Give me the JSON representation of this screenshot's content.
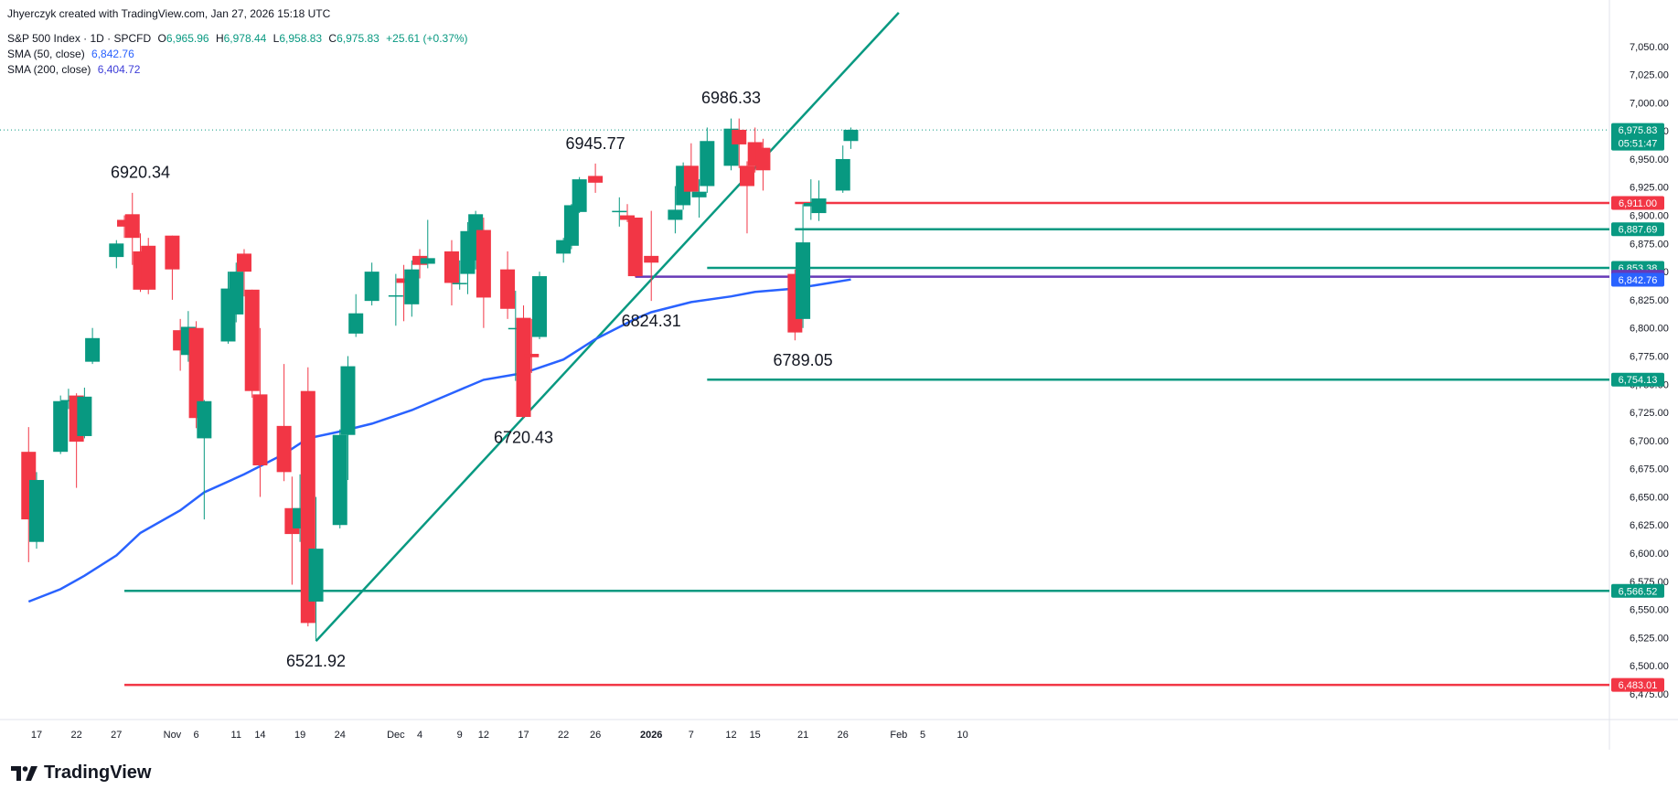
{
  "header": {
    "created": "Jhyerczyk created with TradingView.com, Jan 27, 2026 15:18 UTC",
    "symbol": "S&P 500 Index · 1D · SPCFD",
    "ohlc": {
      "o_label": "O",
      "o": "6,965.96",
      "h_label": "H",
      "h": "6,978.44",
      "l_label": "L",
      "l": "6,958.83",
      "c_label": "C",
      "c": "6,975.83",
      "change": "+25.61 (+0.37%)"
    },
    "sma50": {
      "label": "SMA (50, close)",
      "value": "6,842.76"
    },
    "sma200": {
      "label": "SMA (200, close)",
      "value": "6,404.72"
    }
  },
  "logo": {
    "text": "TradingView",
    "icon": "tradingview-logo-icon"
  },
  "colors": {
    "up": "#089981",
    "down": "#f23645",
    "sma": "#2962ff",
    "support": "#089981",
    "resistance": "#f23645",
    "purple": "#673ab7"
  },
  "chart_data": {
    "type": "candlestick",
    "ylim": [
      6462,
      7075
    ],
    "y_ticks": [
      6475,
      6500,
      6525,
      6550,
      6575,
      6600,
      6625,
      6650,
      6675,
      6700,
      6725,
      6750,
      6775,
      6800,
      6825,
      6850,
      6875,
      6900,
      6925,
      6950,
      6975,
      7000,
      7025,
      7050
    ],
    "x_ticks": [
      {
        "label": "17",
        "date": "2025-10-17"
      },
      {
        "label": "22",
        "date": "2025-10-22"
      },
      {
        "label": "27",
        "date": "2025-10-27"
      },
      {
        "label": "Nov",
        "date": "2025-11-03"
      },
      {
        "label": "6",
        "date": "2025-11-06"
      },
      {
        "label": "11",
        "date": "2025-11-11"
      },
      {
        "label": "14",
        "date": "2025-11-14"
      },
      {
        "label": "19",
        "date": "2025-11-19"
      },
      {
        "label": "24",
        "date": "2025-11-24"
      },
      {
        "label": "Dec",
        "date": "2025-12-01"
      },
      {
        "label": "4",
        "date": "2025-12-04"
      },
      {
        "label": "9",
        "date": "2025-12-09"
      },
      {
        "label": "12",
        "date": "2025-12-12"
      },
      {
        "label": "17",
        "date": "2025-12-17"
      },
      {
        "label": "22",
        "date": "2025-12-22"
      },
      {
        "label": "26",
        "date": "2025-12-26"
      },
      {
        "label": "2026",
        "date": "2026-01-02"
      },
      {
        "label": "7",
        "date": "2026-01-07"
      },
      {
        "label": "12",
        "date": "2026-01-12"
      },
      {
        "label": "15",
        "date": "2026-01-15"
      },
      {
        "label": "21",
        "date": "2026-01-21"
      },
      {
        "label": "26",
        "date": "2026-01-26"
      },
      {
        "label": "Feb",
        "date": "2026-02-02"
      },
      {
        "label": "5",
        "date": "2026-02-05"
      },
      {
        "label": "10",
        "date": "2026-02-10"
      }
    ],
    "candles": [
      {
        "d": "2025-10-16",
        "o": 6690,
        "h": 6712,
        "l": 6592,
        "c": 6630
      },
      {
        "d": "2025-10-17",
        "o": 6610,
        "h": 6672,
        "l": 6604,
        "c": 6665
      },
      {
        "d": "2025-10-20",
        "o": 6690,
        "h": 6740,
        "l": 6688,
        "c": 6735
      },
      {
        "d": "2025-10-21",
        "o": 6735,
        "h": 6746,
        "l": 6728,
        "c": 6736
      },
      {
        "d": "2025-10-22",
        "o": 6740,
        "h": 6742,
        "l": 6658,
        "c": 6699
      },
      {
        "d": "2025-10-23",
        "o": 6704,
        "h": 6747,
        "l": 6702,
        "c": 6739
      },
      {
        "d": "2025-10-24",
        "o": 6770,
        "h": 6800,
        "l": 6768,
        "c": 6791
      },
      {
        "d": "2025-10-27",
        "o": 6863,
        "h": 6878,
        "l": 6853,
        "c": 6875
      },
      {
        "d": "2025-10-28",
        "o": 6896,
        "h": 6900,
        "l": 6880,
        "c": 6890
      },
      {
        "d": "2025-10-29",
        "o": 6901,
        "h": 6920,
        "l": 6856,
        "c": 6880
      },
      {
        "d": "2025-10-30",
        "o": 6868,
        "h": 6884,
        "l": 6832,
        "c": 6834
      },
      {
        "d": "2025-10-31",
        "o": 6873,
        "h": 6880,
        "l": 6830,
        "c": 6834
      },
      {
        "d": "2025-11-03",
        "o": 6882,
        "h": 6882,
        "l": 6825,
        "c": 6852
      },
      {
        "d": "2025-11-04",
        "o": 6798,
        "h": 6808,
        "l": 6762,
        "c": 6780
      },
      {
        "d": "2025-11-05",
        "o": 6776,
        "h": 6815,
        "l": 6770,
        "c": 6801
      },
      {
        "d": "2025-11-06",
        "o": 6800,
        "h": 6806,
        "l": 6711,
        "c": 6720
      },
      {
        "d": "2025-11-07",
        "o": 6702,
        "h": 6736,
        "l": 6630,
        "c": 6735
      },
      {
        "d": "2025-11-10",
        "o": 6788,
        "h": 6850,
        "l": 6786,
        "c": 6835
      },
      {
        "d": "2025-11-11",
        "o": 6812,
        "h": 6858,
        "l": 6805,
        "c": 6850
      },
      {
        "d": "2025-11-12",
        "o": 6866,
        "h": 6870,
        "l": 6828,
        "c": 6850
      },
      {
        "d": "2025-11-13",
        "o": 6834,
        "h": 6834,
        "l": 6738,
        "c": 6744
      },
      {
        "d": "2025-11-14",
        "o": 6741,
        "h": 6800,
        "l": 6650,
        "c": 6678
      },
      {
        "d": "2025-11-17",
        "o": 6713,
        "h": 6768,
        "l": 6664,
        "c": 6672
      },
      {
        "d": "2025-11-18",
        "o": 6640,
        "h": 6668,
        "l": 6572,
        "c": 6617
      },
      {
        "d": "2025-11-19",
        "o": 6622,
        "h": 6670,
        "l": 6610,
        "c": 6640
      },
      {
        "d": "2025-11-20",
        "o": 6744,
        "h": 6765,
        "l": 6535,
        "c": 6538
      },
      {
        "d": "2025-11-21",
        "o": 6557,
        "h": 6650,
        "l": 6522,
        "c": 6604
      },
      {
        "d": "2025-11-24",
        "o": 6625,
        "h": 6710,
        "l": 6622,
        "c": 6705
      },
      {
        "d": "2025-11-25",
        "o": 6705,
        "h": 6775,
        "l": 6665,
        "c": 6766
      },
      {
        "d": "2025-11-26",
        "o": 6795,
        "h": 6830,
        "l": 6792,
        "c": 6813
      },
      {
        "d": "2025-11-28",
        "o": 6824,
        "h": 6858,
        "l": 6820,
        "c": 6850
      },
      {
        "d": "2025-12-01",
        "o": 6829,
        "h": 6848,
        "l": 6802,
        "c": 6829
      },
      {
        "d": "2025-12-02",
        "o": 6844,
        "h": 6856,
        "l": 6806,
        "c": 6840
      },
      {
        "d": "2025-12-03",
        "o": 6821,
        "h": 6860,
        "l": 6810,
        "c": 6852
      },
      {
        "d": "2025-12-04",
        "o": 6864,
        "h": 6870,
        "l": 6844,
        "c": 6856
      },
      {
        "d": "2025-12-05",
        "o": 6857,
        "h": 6896,
        "l": 6853,
        "c": 6862
      },
      {
        "d": "2025-12-08",
        "o": 6868,
        "h": 6878,
        "l": 6820,
        "c": 6840
      },
      {
        "d": "2025-12-09",
        "o": 6840,
        "h": 6860,
        "l": 6834,
        "c": 6840
      },
      {
        "d": "2025-12-10",
        "o": 6848,
        "h": 6894,
        "l": 6830,
        "c": 6886
      },
      {
        "d": "2025-12-11",
        "o": 6860,
        "h": 6904,
        "l": 6852,
        "c": 6901
      },
      {
        "d": "2025-12-12",
        "o": 6887,
        "h": 6898,
        "l": 6800,
        "c": 6827
      },
      {
        "d": "2025-12-15",
        "o": 6852,
        "h": 6868,
        "l": 6808,
        "c": 6817
      },
      {
        "d": "2025-12-16",
        "o": 6800,
        "h": 6833,
        "l": 6753,
        "c": 6800
      },
      {
        "d": "2025-12-17",
        "o": 6809,
        "h": 6820,
        "l": 6720,
        "c": 6721
      },
      {
        "d": "2025-12-18",
        "o": 6777,
        "h": 6808,
        "l": 6760,
        "c": 6774
      },
      {
        "d": "2025-12-19",
        "o": 6792,
        "h": 6850,
        "l": 6790,
        "c": 6846
      },
      {
        "d": "2025-12-22",
        "o": 6866,
        "h": 6880,
        "l": 6858,
        "c": 6878
      },
      {
        "d": "2025-12-23",
        "o": 6873,
        "h": 6910,
        "l": 6870,
        "c": 6909
      },
      {
        "d": "2025-12-24",
        "o": 6903,
        "h": 6934,
        "l": 6902,
        "c": 6932
      },
      {
        "d": "2025-12-26",
        "o": 6935,
        "h": 6946,
        "l": 6920,
        "c": 6929
      },
      {
        "d": "2025-12-29",
        "o": 6903,
        "h": 6916,
        "l": 6890,
        "c": 6904
      },
      {
        "d": "2025-12-30",
        "o": 6900,
        "h": 6910,
        "l": 6894,
        "c": 6896
      },
      {
        "d": "2025-12-31",
        "o": 6898,
        "h": 6898,
        "l": 6845,
        "c": 6846
      },
      {
        "d": "2026-01-02",
        "o": 6864,
        "h": 6904,
        "l": 6824,
        "c": 6858
      },
      {
        "d": "2026-01-05",
        "o": 6896,
        "h": 6926,
        "l": 6884,
        "c": 6905
      },
      {
        "d": "2026-01-06",
        "o": 6909,
        "h": 6947,
        "l": 6905,
        "c": 6944
      },
      {
        "d": "2026-01-07",
        "o": 6944,
        "h": 6964,
        "l": 6922,
        "c": 6921
      },
      {
        "d": "2026-01-08",
        "o": 6916,
        "h": 6932,
        "l": 6898,
        "c": 6921
      },
      {
        "d": "2026-01-09",
        "o": 6926,
        "h": 6978,
        "l": 6920,
        "c": 6966
      },
      {
        "d": "2026-01-12",
        "o": 6944,
        "h": 6986,
        "l": 6940,
        "c": 6977
      },
      {
        "d": "2026-01-13",
        "o": 6976,
        "h": 6986,
        "l": 6942,
        "c": 6963
      },
      {
        "d": "2026-01-14",
        "o": 6944,
        "h": 6948,
        "l": 6884,
        "c": 6926
      },
      {
        "d": "2026-01-15",
        "o": 6965,
        "h": 6978,
        "l": 6938,
        "c": 6944
      },
      {
        "d": "2026-01-16",
        "o": 6960,
        "h": 6968,
        "l": 6922,
        "c": 6940
      },
      {
        "d": "2026-01-20",
        "o": 6848,
        "h": 6852,
        "l": 6789,
        "c": 6796
      },
      {
        "d": "2026-01-21",
        "o": 6808,
        "h": 6910,
        "l": 6800,
        "c": 6876
      },
      {
        "d": "2026-01-22",
        "o": 6908,
        "h": 6932,
        "l": 6896,
        "c": 6911
      },
      {
        "d": "2026-01-23",
        "o": 6902,
        "h": 6931,
        "l": 6895,
        "c": 6915
      },
      {
        "d": "2026-01-26",
        "o": 6922,
        "h": 6962,
        "l": 6920,
        "c": 6950
      },
      {
        "d": "2026-01-27",
        "o": 6966,
        "h": 6978,
        "l": 6959,
        "c": 6976
      }
    ],
    "sma50": [
      [
        "2025-10-16",
        6557
      ],
      [
        "2025-10-20",
        6568
      ],
      [
        "2025-10-23",
        6580
      ],
      [
        "2025-10-27",
        6598
      ],
      [
        "2025-10-30",
        6618
      ],
      [
        "2025-11-04",
        6638
      ],
      [
        "2025-11-07",
        6654
      ],
      [
        "2025-11-12",
        6670
      ],
      [
        "2025-11-17",
        6688
      ],
      [
        "2025-11-20",
        6702
      ],
      [
        "2025-11-24",
        6708
      ],
      [
        "2025-11-28",
        6715
      ],
      [
        "2025-12-03",
        6727
      ],
      [
        "2025-12-08",
        6742
      ],
      [
        "2025-12-12",
        6754
      ],
      [
        "2025-12-17",
        6760
      ],
      [
        "2025-12-22",
        6772
      ],
      [
        "2025-12-26",
        6790
      ],
      [
        "2025-12-31",
        6808
      ],
      [
        "2026-01-02",
        6814
      ],
      [
        "2026-01-07",
        6823
      ],
      [
        "2026-01-12",
        6828
      ],
      [
        "2026-01-15",
        6832
      ],
      [
        "2026-01-20",
        6835
      ],
      [
        "2026-01-27",
        6843
      ]
    ],
    "trendline": [
      [
        "2025-11-21",
        6521.92
      ],
      [
        "2026-02-02",
        7080
      ]
    ],
    "h_lines": [
      {
        "value": 6911.0,
        "label": "6,911.00",
        "color": "#f23645",
        "from": "2026-01-20"
      },
      {
        "value": 6887.69,
        "label": "6,887.69",
        "color": "#089981",
        "from": "2026-01-20"
      },
      {
        "value": 6853.38,
        "label": "6,853.38",
        "color": "#089981",
        "from": "2026-01-09"
      },
      {
        "value": 6845.49,
        "label": "6,845.49",
        "color": "#673ab7",
        "from": "2025-12-31"
      },
      {
        "value": 6754.13,
        "label": "6,754.13",
        "color": "#089981",
        "from": "2026-01-09"
      },
      {
        "value": 6566.52,
        "label": "6,566.52",
        "color": "#089981",
        "from": "2025-10-28"
      },
      {
        "value": 6483.01,
        "label": "6,483.01",
        "color": "#f23645",
        "from": "2025-10-28"
      }
    ],
    "price_labels": [
      {
        "value": 6975.83,
        "label": "6,975.83",
        "label2": "05:51:47",
        "color": "#089981"
      },
      {
        "value": 6842.76,
        "label": "6,842.76",
        "color": "#2962ff"
      }
    ],
    "annotations": [
      {
        "text": "6920.34",
        "d": "2025-10-30",
        "y": 6920.34,
        "pos": "above"
      },
      {
        "text": "6521.92",
        "d": "2025-11-21",
        "y": 6521.92,
        "pos": "below"
      },
      {
        "text": "6945.77",
        "d": "2025-12-26",
        "y": 6945.77,
        "pos": "above"
      },
      {
        "text": "6720.43",
        "d": "2025-12-17",
        "y": 6720.43,
        "pos": "below"
      },
      {
        "text": "6986.33",
        "d": "2026-01-12",
        "y": 6986.33,
        "pos": "above"
      },
      {
        "text": "6824.31",
        "d": "2026-01-02",
        "y": 6824.31,
        "pos": "below"
      },
      {
        "text": "6789.05",
        "d": "2026-01-21",
        "y": 6789.05,
        "pos": "below"
      }
    ]
  }
}
